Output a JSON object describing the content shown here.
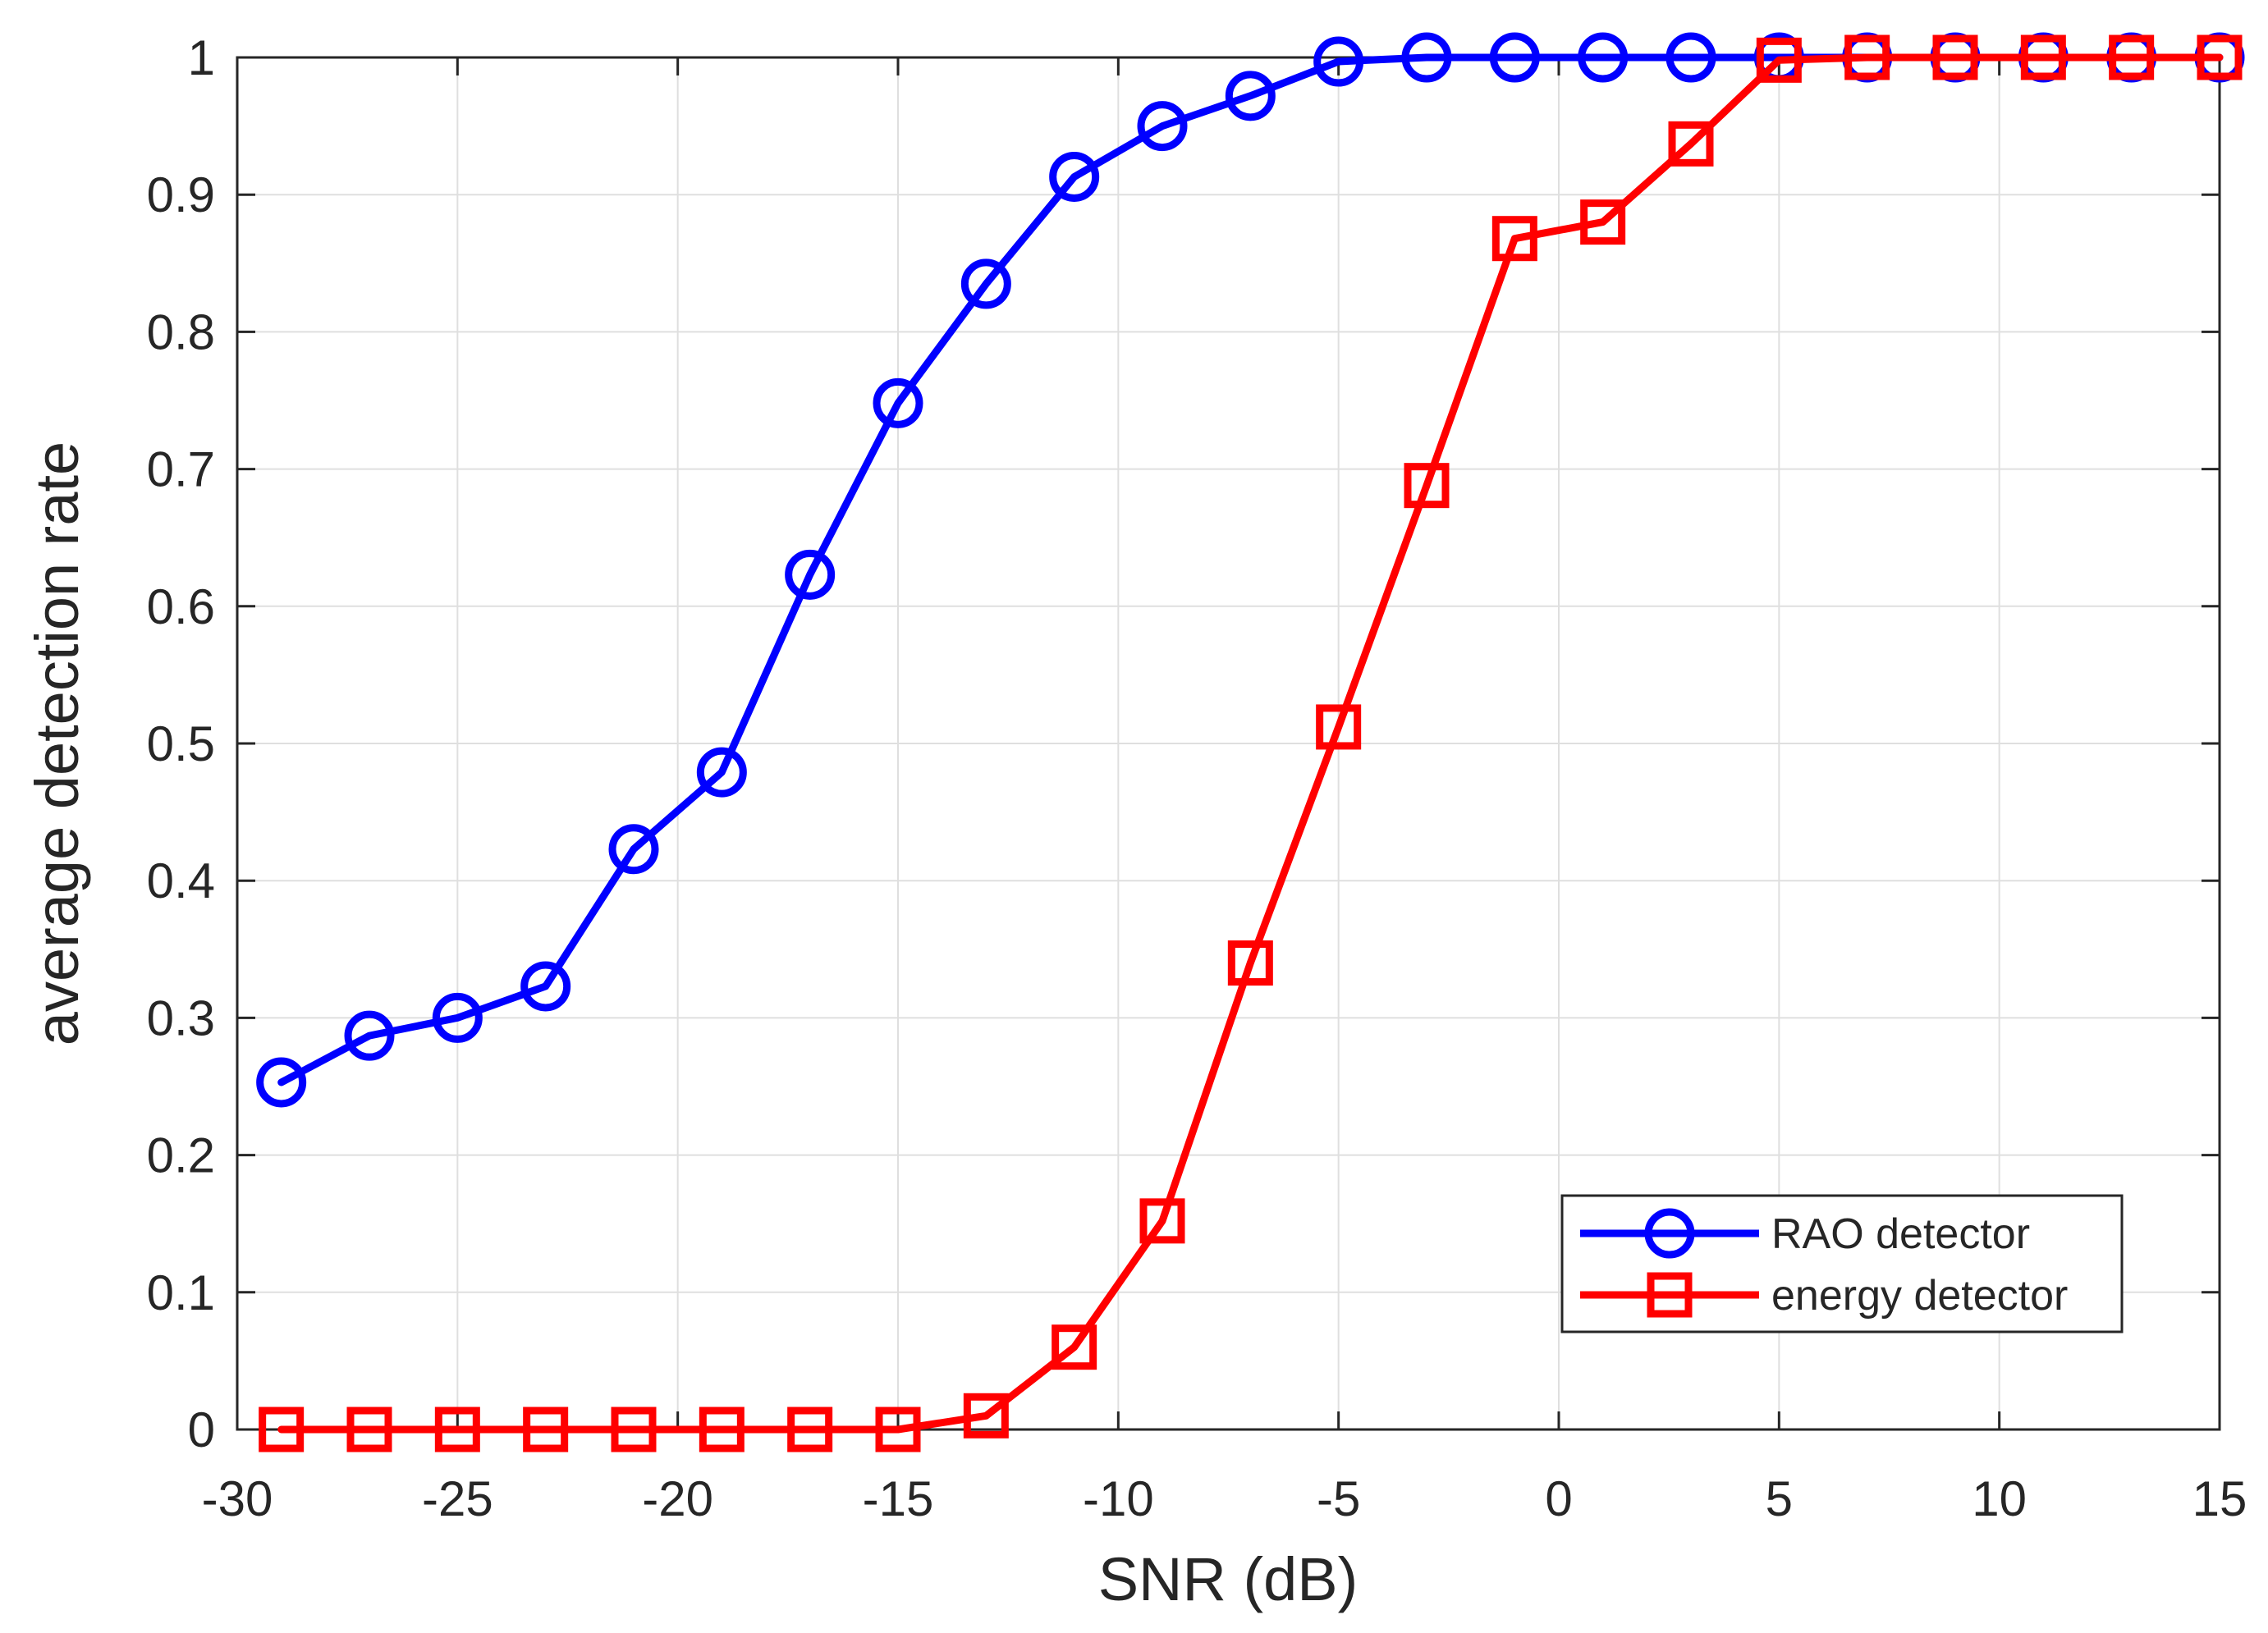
{
  "chart_data": {
    "type": "line",
    "title": "",
    "xlabel": "SNR (dB)",
    "ylabel": "average detection rate",
    "xlim": [
      -30,
      15
    ],
    "ylim": [
      0,
      1
    ],
    "grid": true,
    "xticks": [
      -30,
      -25,
      -20,
      -15,
      -10,
      -5,
      0,
      5,
      10,
      15
    ],
    "yticks": [
      0,
      0.1,
      0.2,
      0.3,
      0.4,
      0.5,
      0.6,
      0.7,
      0.8,
      0.9,
      1
    ],
    "xtick_labels": [
      "-30",
      "-25",
      "-20",
      "-15",
      "-10",
      "-5",
      "0",
      "5",
      "10",
      "15"
    ],
    "ytick_labels": [
      "0",
      "0.1",
      "0.2",
      "0.3",
      "0.4",
      "0.5",
      "0.6",
      "0.7",
      "0.8",
      "0.9",
      "1"
    ],
    "x": [
      -29,
      -27,
      -25,
      -23,
      -21,
      -19,
      -17,
      -15,
      -13,
      -11,
      -9,
      -7,
      -5,
      -3,
      -1,
      1,
      3,
      5,
      7,
      9,
      11,
      13,
      15
    ],
    "series": [
      {
        "name": "RAO detector",
        "color": "#0000ff",
        "marker": "circle",
        "values": [
          0.253,
          0.287,
          0.3,
          0.323,
          0.423,
          0.479,
          0.623,
          0.748,
          0.835,
          0.913,
          0.95,
          0.972,
          0.997,
          1,
          1,
          1,
          1,
          1,
          1,
          1,
          1,
          1,
          1
        ]
      },
      {
        "name": "energy detector",
        "color": "#ff0000",
        "marker": "square",
        "values": [
          0,
          0,
          0,
          0,
          0,
          0,
          0,
          0,
          0.01,
          0.06,
          0.152,
          0.34,
          0.512,
          0.688,
          0.868,
          0.88,
          0.937,
          0.998,
          1,
          1,
          1,
          1,
          1
        ]
      }
    ],
    "legend": {
      "location": "bottom-right",
      "entries": [
        "RAO detector",
        "energy detector"
      ]
    }
  }
}
